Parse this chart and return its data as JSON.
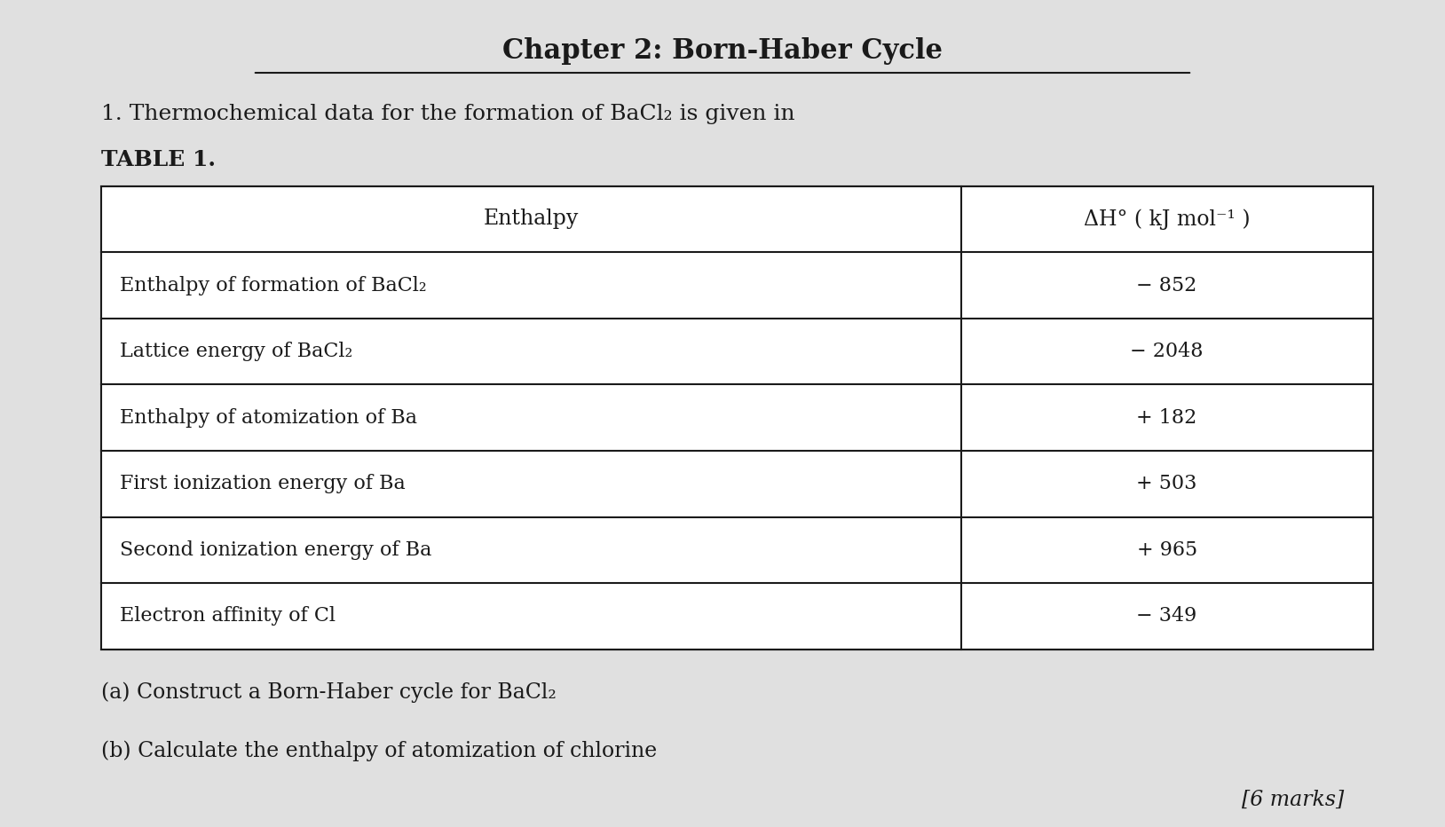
{
  "title": "Chapter 2: Born-Haber Cycle",
  "subtitle_full": "1. Thermochemical data for the formation of BaCl₂ is given in",
  "table_label": "TABLE 1.",
  "col1_header": "Enthalpy",
  "col2_header": "ΔH° ( kJ mol⁻¹ )",
  "rows": [
    [
      "Enthalpy of formation of BaCl₂",
      "− 852"
    ],
    [
      "Lattice energy of BaCl₂",
      "− 2048"
    ],
    [
      "Enthalpy of atomization of Ba",
      "+ 182"
    ],
    [
      "First ionization energy of Ba",
      "+ 503"
    ],
    [
      "Second ionization energy of Ba",
      "+ 965"
    ],
    [
      "Electron affinity of Cl",
      "− 349"
    ]
  ],
  "footnote_a": "(a) Construct a Born-Haber cycle for BaCl₂",
  "footnote_b": "(b) Calculate the enthalpy of atomization of chlorine",
  "marks": "[6 marks]",
  "bg_color": "#e0e0e0",
  "table_bg": "#ffffff",
  "text_color": "#1a1a1a",
  "title_fontsize": 22,
  "subtitle_fontsize": 18,
  "header_fontsize": 17,
  "cell_fontsize": 16,
  "footnote_fontsize": 17,
  "marks_fontsize": 17
}
